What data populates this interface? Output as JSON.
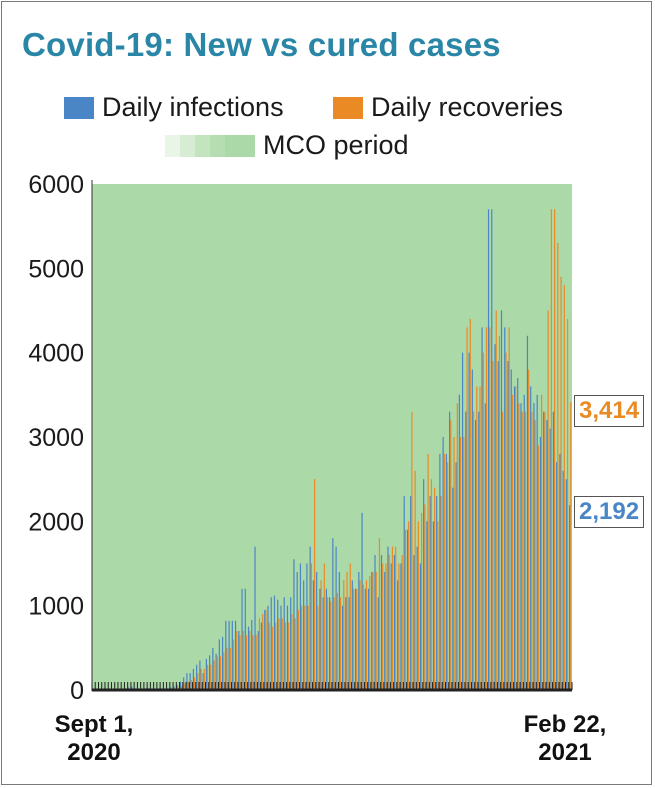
{
  "title": "Covid-19: New vs cured cases",
  "legend": {
    "infections": "Daily infections",
    "recoveries": "Daily recoveries",
    "mco": "MCO period"
  },
  "colors": {
    "infections": "#4a86c6",
    "recoveries": "#ea8a25",
    "mco": "#acd9a8",
    "title": "#2a86a6"
  },
  "x_axis": {
    "start_label_1": "Sept 1,",
    "start_label_2": "2020",
    "end_label_1": "Feb 22,",
    "end_label_2": "2021"
  },
  "end_labels": {
    "recoveries": "3,414",
    "infections": "2,192"
  },
  "chart_data": {
    "type": "bar",
    "title": "Covid-19: New vs cured cases",
    "xlabel": "",
    "ylabel": "",
    "ylim": [
      0,
      6000
    ],
    "yticks": [
      0,
      1000,
      2000,
      3000,
      4000,
      5000,
      6000
    ],
    "x_start": "Sept 1, 2020",
    "x_end": "Feb 22, 2021",
    "shaded_region": "MCO period",
    "grid": false,
    "legend_position": "top",
    "series": [
      {
        "name": "Daily infections",
        "values": [
          5,
          5,
          5,
          5,
          5,
          5,
          5,
          5,
          5,
          10,
          20,
          30,
          40,
          20,
          20,
          15,
          20,
          25,
          20,
          20,
          20,
          20,
          20,
          20,
          30,
          40,
          60,
          100,
          150,
          200,
          200,
          250,
          300,
          350,
          200,
          370,
          410,
          500,
          430,
          600,
          630,
          820,
          820,
          820,
          820,
          700,
          1200,
          1200,
          750,
          830,
          1700,
          700,
          800,
          950,
          1000,
          1100,
          1120,
          1070,
          1000,
          1100,
          1000,
          1100,
          1550,
          1400,
          1500,
          1300,
          1500,
          1700,
          1300,
          1400,
          1200,
          1100,
          1200,
          1100,
          1800,
          1700,
          1400,
          1000,
          1100,
          1100,
          1300,
          1200,
          1400,
          2100,
          1200,
          1200,
          1400,
          1600,
          1100,
          1600,
          1400,
          1700,
          1500,
          1600,
          1300,
          1500,
          2300,
          1900,
          2300,
          1600,
          1700,
          1500,
          2500,
          2000,
          2300,
          2000,
          2300,
          2800,
          3000,
          2800,
          3300,
          2400,
          2700,
          3500,
          4000,
          3300,
          4000,
          3800,
          3200,
          3300,
          4300,
          3400,
          5700,
          5700,
          4100,
          3900,
          4500,
          4300,
          3900,
          3800,
          3600,
          3700,
          3400,
          3500,
          4200,
          3600,
          3400,
          3500,
          3000,
          3300,
          3200,
          3100,
          3300,
          2700,
          2800,
          2600,
          2500,
          2192
        ]
      },
      {
        "name": "Daily recoveries",
        "values": [
          5,
          5,
          5,
          5,
          5,
          5,
          5,
          5,
          5,
          5,
          10,
          10,
          10,
          10,
          15,
          15,
          15,
          15,
          15,
          15,
          15,
          15,
          15,
          15,
          20,
          20,
          30,
          50,
          80,
          100,
          120,
          150,
          200,
          250,
          250,
          300,
          300,
          350,
          400,
          400,
          450,
          500,
          500,
          600,
          700,
          650,
          700,
          650,
          700,
          650,
          650,
          850,
          900,
          950,
          800,
          750,
          800,
          850,
          850,
          800,
          800,
          900,
          850,
          950,
          1000,
          1000,
          1000,
          1500,
          2500,
          1000,
          1300,
          1500,
          1100,
          1050,
          1100,
          1150,
          1100,
          1300,
          1400,
          1500,
          1200,
          1200,
          1300,
          1250,
          1300,
          1350,
          1400,
          1400,
          1800,
          1500,
          1500,
          1600,
          1700,
          1700,
          1500,
          1600,
          1900,
          2000,
          3300,
          2600,
          2000,
          2100,
          2200,
          2800,
          2500,
          2400,
          2000,
          2300,
          2800,
          2700,
          3200,
          3000,
          3400,
          3000,
          3000,
          4300,
          4400,
          3300,
          3600,
          3600,
          4000,
          4300,
          4300,
          3900,
          4500,
          4200,
          3300,
          4000,
          4300,
          3500,
          3600,
          3400,
          3300,
          3300,
          3800,
          3300,
          3200,
          2900,
          3500,
          3300,
          4500,
          5700,
          5700,
          5300,
          4900,
          4800,
          4400,
          3414
        ]
      }
    ]
  }
}
